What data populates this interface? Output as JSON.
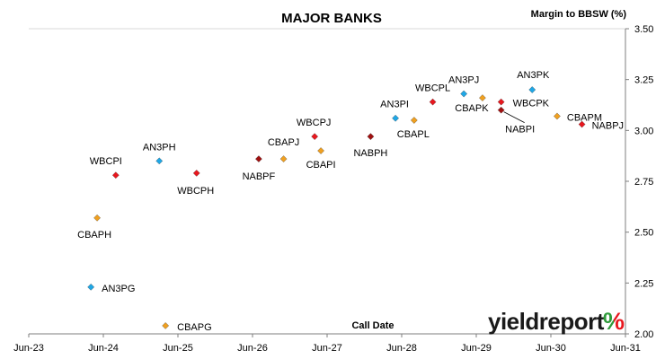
{
  "chart_data": {
    "type": "scatter",
    "title": "MAJOR BANKS",
    "xlabel": "Call Date",
    "ylabel": "Margin to BBSW (%)",
    "x_ticks": [
      "Jun-23",
      "Jun-24",
      "Jun-25",
      "Jun-26",
      "Jun-27",
      "Jun-28",
      "Jun-29",
      "Jun-30",
      "Jun-31"
    ],
    "y_ticks": [
      "2.00",
      "2.25",
      "2.50",
      "2.75",
      "3.00",
      "3.25",
      "3.50"
    ],
    "xlim": [
      "Jun-23",
      "Jun-31"
    ],
    "ylim": [
      2.0,
      3.5
    ],
    "grid": false,
    "points": [
      {
        "label": "AN3PG",
        "x": "2024-04",
        "y": 2.23,
        "color": "#1fa7e6"
      },
      {
        "label": "CBAPH",
        "x": "2024-05",
        "y": 2.57,
        "color": "#f0a020"
      },
      {
        "label": "WBCPI",
        "x": "2024-08",
        "y": 2.78,
        "color": "#e8171e"
      },
      {
        "label": "AN3PH",
        "x": "2025-03",
        "y": 2.85,
        "color": "#1fa7e6"
      },
      {
        "label": "CBAPG",
        "x": "2025-04",
        "y": 2.04,
        "color": "#f0a020"
      },
      {
        "label": "WBCPH",
        "x": "2025-09",
        "y": 2.79,
        "color": "#e8171e"
      },
      {
        "label": "NABPF",
        "x": "2026-07",
        "y": 2.86,
        "color": "#a01010"
      },
      {
        "label": "CBAPJ",
        "x": "2026-11",
        "y": 2.86,
        "color": "#f0a020"
      },
      {
        "label": "WBCPJ",
        "x": "2027-04",
        "y": 2.97,
        "color": "#e8171e"
      },
      {
        "label": "CBAPI",
        "x": "2027-05",
        "y": 2.9,
        "color": "#f0a020"
      },
      {
        "label": "NABPH",
        "x": "2028-01",
        "y": 2.97,
        "color": "#a01010"
      },
      {
        "label": "AN3PI",
        "x": "2028-05",
        "y": 3.06,
        "color": "#1fa7e6"
      },
      {
        "label": "CBAPL",
        "x": "2028-08",
        "y": 3.05,
        "color": "#f0a020"
      },
      {
        "label": "WBCPL",
        "x": "2028-11",
        "y": 3.14,
        "color": "#e8171e"
      },
      {
        "label": "AN3PJ",
        "x": "2029-04",
        "y": 3.18,
        "color": "#1fa7e6"
      },
      {
        "label": "CBAPK",
        "x": "2029-07",
        "y": 3.16,
        "color": "#f0a020"
      },
      {
        "label": "NABPI",
        "x": "2029-10",
        "y": 3.1,
        "color": "#a01010"
      },
      {
        "label": "WBCPK",
        "x": "2029-10",
        "y": 3.14,
        "color": "#e8171e"
      },
      {
        "label": "AN3PK",
        "x": "2030-03",
        "y": 3.2,
        "color": "#1fa7e6"
      },
      {
        "label": "CBAPM",
        "x": "2030-07",
        "y": 3.07,
        "color": "#f0a020"
      },
      {
        "label": "NABPJ",
        "x": "2030-11",
        "y": 3.03,
        "color": "#e8171e"
      }
    ]
  },
  "brand": {
    "name": "yieldreport",
    "symbol": "%",
    "name_color": "#1a1a1a",
    "symbol_colors": [
      "#2e9b3a",
      "#e8171e"
    ]
  }
}
